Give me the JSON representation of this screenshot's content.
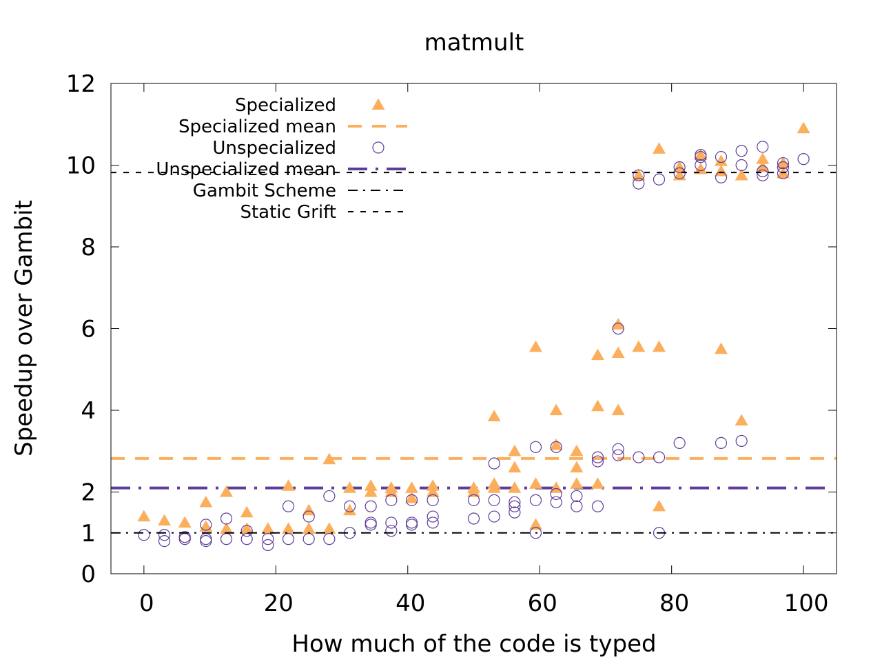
{
  "chart_data": {
    "type": "scatter",
    "title": "matmult",
    "xlabel": "How much of the code is typed",
    "ylabel": "Speedup over Gambit",
    "xlim": [
      -5,
      105
    ],
    "ylim": [
      0,
      12
    ],
    "xticks": [
      0,
      20,
      40,
      60,
      80,
      100
    ],
    "yticks": [
      0,
      1,
      2,
      4,
      6,
      8,
      10,
      12
    ],
    "grid": false,
    "legend_position": "top-left",
    "series": [
      {
        "name": "Specialized",
        "kind": "points",
        "marker": "triangle",
        "color": "#fbaf5d",
        "points": [
          [
            0,
            1.4
          ],
          [
            3.1,
            1.3
          ],
          [
            6.2,
            1.25
          ],
          [
            9.4,
            1.75
          ],
          [
            9.4,
            1.15
          ],
          [
            12.5,
            1.1
          ],
          [
            12.5,
            2.0
          ],
          [
            15.6,
            1.5
          ],
          [
            15.6,
            1.1
          ],
          [
            18.8,
            1.1
          ],
          [
            21.9,
            1.1
          ],
          [
            21.9,
            2.15
          ],
          [
            25,
            1.55
          ],
          [
            25,
            1.1
          ],
          [
            28.1,
            2.8
          ],
          [
            28.1,
            1.1
          ],
          [
            31.2,
            2.1
          ],
          [
            31.2,
            1.55
          ],
          [
            34.4,
            2.15
          ],
          [
            34.4,
            2.0
          ],
          [
            37.5,
            2.1
          ],
          [
            37.5,
            2.0
          ],
          [
            40.6,
            2.1
          ],
          [
            40.6,
            1.85
          ],
          [
            43.8,
            2.15
          ],
          [
            43.8,
            2.0
          ],
          [
            50,
            2.1
          ],
          [
            50,
            2.0
          ],
          [
            53.1,
            3.85
          ],
          [
            53.1,
            2.2
          ],
          [
            53.1,
            2.1
          ],
          [
            56.2,
            3.0
          ],
          [
            56.2,
            2.6
          ],
          [
            56.2,
            2.1
          ],
          [
            59.4,
            5.55
          ],
          [
            59.4,
            2.2
          ],
          [
            59.4,
            1.2
          ],
          [
            62.5,
            4.0
          ],
          [
            62.5,
            3.15
          ],
          [
            62.5,
            2.1
          ],
          [
            65.6,
            3.0
          ],
          [
            65.6,
            2.6
          ],
          [
            65.6,
            2.2
          ],
          [
            68.8,
            5.35
          ],
          [
            68.8,
            4.1
          ],
          [
            68.8,
            2.2
          ],
          [
            71.9,
            6.1
          ],
          [
            71.9,
            5.4
          ],
          [
            71.9,
            4.0
          ],
          [
            75,
            9.75
          ],
          [
            75,
            5.55
          ],
          [
            78.1,
            10.4
          ],
          [
            78.1,
            5.55
          ],
          [
            78.1,
            1.65
          ],
          [
            81.2,
            9.95
          ],
          [
            81.2,
            9.75
          ],
          [
            84.4,
            10.25
          ],
          [
            84.4,
            9.9
          ],
          [
            87.5,
            10.1
          ],
          [
            87.5,
            9.85
          ],
          [
            87.5,
            5.5
          ],
          [
            90.6,
            9.75
          ],
          [
            90.6,
            3.75
          ],
          [
            93.8,
            10.15
          ],
          [
            93.8,
            9.95
          ],
          [
            96.9,
            10.05
          ],
          [
            96.9,
            9.8
          ],
          [
            100,
            10.9
          ]
        ]
      },
      {
        "name": "Specialized mean",
        "kind": "hline",
        "value": 2.82,
        "color": "#fbaf5d",
        "dash": "dashed"
      },
      {
        "name": "Unspecialized",
        "kind": "points",
        "marker": "circle",
        "color": "#5e3c99",
        "points": [
          [
            0,
            0.95
          ],
          [
            3.1,
            0.8
          ],
          [
            3.1,
            0.95
          ],
          [
            6.2,
            0.85
          ],
          [
            6.2,
            0.9
          ],
          [
            9.4,
            0.8
          ],
          [
            9.4,
            0.85
          ],
          [
            9.4,
            1.2
          ],
          [
            12.5,
            0.85
          ],
          [
            12.5,
            1.35
          ],
          [
            15.6,
            0.85
          ],
          [
            15.6,
            1.05
          ],
          [
            18.8,
            0.7
          ],
          [
            18.8,
            0.85
          ],
          [
            21.9,
            0.85
          ],
          [
            21.9,
            1.65
          ],
          [
            25,
            0.85
          ],
          [
            25,
            1.4
          ],
          [
            28.1,
            0.85
          ],
          [
            28.1,
            1.9
          ],
          [
            31.2,
            1.0
          ],
          [
            31.2,
            1.65
          ],
          [
            34.4,
            1.2
          ],
          [
            34.4,
            1.25
          ],
          [
            34.4,
            1.65
          ],
          [
            37.5,
            1.05
          ],
          [
            37.5,
            1.25
          ],
          [
            37.5,
            1.8
          ],
          [
            40.6,
            1.2
          ],
          [
            40.6,
            1.25
          ],
          [
            40.6,
            1.8
          ],
          [
            43.8,
            1.25
          ],
          [
            43.8,
            1.4
          ],
          [
            43.8,
            1.8
          ],
          [
            50,
            1.35
          ],
          [
            50,
            1.8
          ],
          [
            53.1,
            1.4
          ],
          [
            53.1,
            1.8
          ],
          [
            53.1,
            2.7
          ],
          [
            56.2,
            1.5
          ],
          [
            56.2,
            1.65
          ],
          [
            56.2,
            1.75
          ],
          [
            59.4,
            1.0
          ],
          [
            59.4,
            1.8
          ],
          [
            59.4,
            3.1
          ],
          [
            62.5,
            1.75
          ],
          [
            62.5,
            1.95
          ],
          [
            62.5,
            3.1
          ],
          [
            65.6,
            1.65
          ],
          [
            65.6,
            1.9
          ],
          [
            68.8,
            1.65
          ],
          [
            68.8,
            2.75
          ],
          [
            68.8,
            2.85
          ],
          [
            71.9,
            2.9
          ],
          [
            71.9,
            3.05
          ],
          [
            71.9,
            6.0
          ],
          [
            75,
            2.85
          ],
          [
            75,
            9.55
          ],
          [
            75,
            9.75
          ],
          [
            78.1,
            1.0
          ],
          [
            78.1,
            2.85
          ],
          [
            78.1,
            9.65
          ],
          [
            81.2,
            3.2
          ],
          [
            81.2,
            9.8
          ],
          [
            81.2,
            9.95
          ],
          [
            84.4,
            10.0
          ],
          [
            84.4,
            10.2
          ],
          [
            84.4,
            10.25
          ],
          [
            87.5,
            3.2
          ],
          [
            87.5,
            9.7
          ],
          [
            87.5,
            10.2
          ],
          [
            90.6,
            3.25
          ],
          [
            90.6,
            10.0
          ],
          [
            90.6,
            10.35
          ],
          [
            93.8,
            9.75
          ],
          [
            93.8,
            9.85
          ],
          [
            93.8,
            10.45
          ],
          [
            96.9,
            9.8
          ],
          [
            96.9,
            9.95
          ],
          [
            96.9,
            10.05
          ],
          [
            100,
            10.15
          ]
        ]
      },
      {
        "name": "Unspecialized mean",
        "kind": "hline",
        "value": 2.1,
        "color": "#5e3c99",
        "dash": "dashdot"
      },
      {
        "name": "Gambit Scheme",
        "kind": "hline",
        "value": 1.0,
        "color": "#000000",
        "dash": "dashdot-thin"
      },
      {
        "name": "Static Grift",
        "kind": "hline",
        "value": 9.82,
        "color": "#000000",
        "dash": "dashed-thin"
      }
    ]
  }
}
